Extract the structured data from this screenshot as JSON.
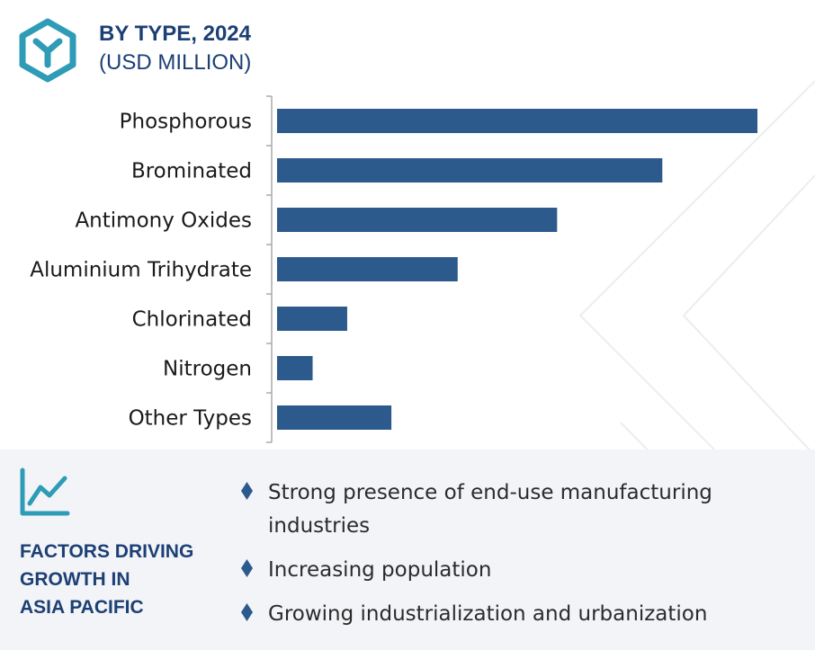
{
  "header": {
    "icon": "hexagon-y-logo-icon",
    "title": "BY TYPE, 2024",
    "subtitle": "(USD MILLION)"
  },
  "colors": {
    "bar": "#2c5a8c",
    "title": "#1c3f74",
    "accent_icon": "#2e9bb7",
    "axis": "#aaaaaa",
    "panel_bg": "#f3f4f8"
  },
  "chart_data": {
    "type": "bar",
    "orientation": "horizontal",
    "title": "BY TYPE, 2024",
    "subtitle": "(USD MILLION)",
    "categories": [
      "Phosphorous",
      "Brominated",
      "Antimony Oxides",
      "Aluminium Trihydrate",
      "Chlorinated",
      "Nitrogen",
      "Other Types"
    ],
    "values": [
      100,
      80.2,
      58.3,
      37.6,
      14.6,
      7.4,
      23.8
    ],
    "value_axis": {
      "range": [
        0,
        100
      ],
      "shown": false
    },
    "grid": false,
    "legend": "none"
  },
  "factors": {
    "icon": "trend-line-chart-icon",
    "title": "FACTORS DRIVING\nGROWTH IN\nASIA PACIFIC",
    "bullet_icon": "diamond-bullet-icon",
    "items": [
      "Strong presence of end-use manufacturing industries",
      "Increasing population",
      "Growing industrialization and urbanization"
    ]
  }
}
